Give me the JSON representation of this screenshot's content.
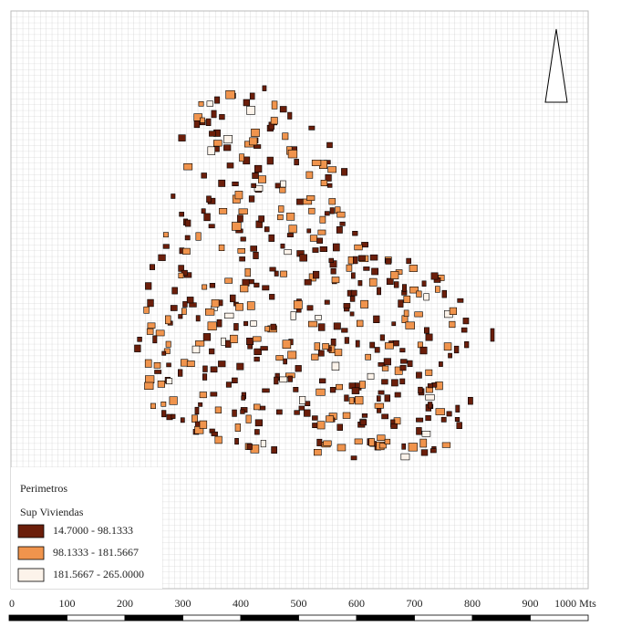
{
  "legend": {
    "title": "Perimetros",
    "subtitle": "Sup Viviendas",
    "classes": [
      {
        "label": "14.7000 - 98.1333",
        "color": "#6b1e0a"
      },
      {
        "label": "98.1333 - 181.5667",
        "color": "#f0944d"
      },
      {
        "label": "181.5667 - 265.0000",
        "color": "#fcf3ea"
      }
    ]
  },
  "scale": {
    "labels": [
      "0",
      "100",
      "200",
      "300",
      "400",
      "500",
      "600",
      "700",
      "800",
      "900",
      "1000 Mts"
    ]
  }
}
